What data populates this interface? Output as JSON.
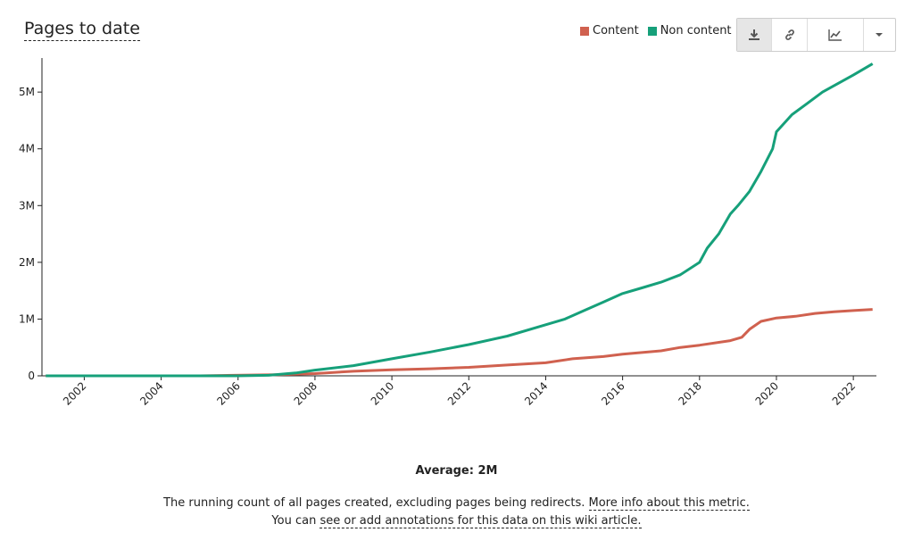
{
  "header": {
    "title": "Pages to date"
  },
  "legend": {
    "items": [
      {
        "label": "Content",
        "color": "#d0614f"
      },
      {
        "label": "Non content",
        "color": "#16a07a"
      }
    ]
  },
  "toolbar": {
    "buttons": [
      {
        "icon": "download-icon",
        "active": true
      },
      {
        "icon": "link-icon",
        "active": false
      },
      {
        "icon": "line-chart-icon",
        "active": false
      },
      {
        "icon": "chevron-down-icon",
        "active": false
      }
    ]
  },
  "chart_data": {
    "type": "line",
    "x_range": [
      2000.9,
      2022.6
    ],
    "ylim": [
      0,
      5600000
    ],
    "y_ticks": [
      0,
      1000000,
      2000000,
      3000000,
      4000000,
      5000000
    ],
    "y_tick_labels": [
      "0",
      "1M",
      "2M",
      "3M",
      "4M",
      "5M"
    ],
    "x_ticks": [
      2002,
      2004,
      2006,
      2008,
      2010,
      2012,
      2014,
      2016,
      2018,
      2020,
      2022
    ],
    "x_tick_labels": [
      "2002",
      "2004",
      "2006",
      "2008",
      "2010",
      "2012",
      "2014",
      "2016",
      "2018",
      "2020",
      "2022"
    ],
    "grid": false,
    "legend_position": "top-right",
    "series": [
      {
        "name": "Content",
        "color": "#d0614f",
        "points": [
          [
            2001.0,
            0
          ],
          [
            2005.0,
            0
          ],
          [
            2005.9,
            10000
          ],
          [
            2007.0,
            20000
          ],
          [
            2008.0,
            40000
          ],
          [
            2009.0,
            80000
          ],
          [
            2010.0,
            105000
          ],
          [
            2011.0,
            125000
          ],
          [
            2012.0,
            150000
          ],
          [
            2013.0,
            190000
          ],
          [
            2014.0,
            230000
          ],
          [
            2014.7,
            300000
          ],
          [
            2015.5,
            340000
          ],
          [
            2016.0,
            380000
          ],
          [
            2017.0,
            440000
          ],
          [
            2017.5,
            500000
          ],
          [
            2018.0,
            540000
          ],
          [
            2018.8,
            620000
          ],
          [
            2019.1,
            680000
          ],
          [
            2019.3,
            820000
          ],
          [
            2019.6,
            960000
          ],
          [
            2020.0,
            1020000
          ],
          [
            2020.5,
            1050000
          ],
          [
            2021.0,
            1100000
          ],
          [
            2021.5,
            1130000
          ],
          [
            2022.0,
            1150000
          ],
          [
            2022.5,
            1170000
          ]
        ]
      },
      {
        "name": "Non content",
        "color": "#16a07a",
        "points": [
          [
            2001.0,
            0
          ],
          [
            2006.0,
            0
          ],
          [
            2006.8,
            10000
          ],
          [
            2007.5,
            50000
          ],
          [
            2008.0,
            100000
          ],
          [
            2009.0,
            180000
          ],
          [
            2010.0,
            300000
          ],
          [
            2011.0,
            420000
          ],
          [
            2012.0,
            550000
          ],
          [
            2013.0,
            700000
          ],
          [
            2014.0,
            900000
          ],
          [
            2014.5,
            1000000
          ],
          [
            2015.0,
            1150000
          ],
          [
            2015.5,
            1300000
          ],
          [
            2016.0,
            1450000
          ],
          [
            2016.5,
            1550000
          ],
          [
            2017.0,
            1650000
          ],
          [
            2017.5,
            1780000
          ],
          [
            2018.0,
            2000000
          ],
          [
            2018.2,
            2250000
          ],
          [
            2018.5,
            2500000
          ],
          [
            2018.8,
            2850000
          ],
          [
            2019.0,
            3000000
          ],
          [
            2019.3,
            3250000
          ],
          [
            2019.6,
            3600000
          ],
          [
            2019.9,
            4000000
          ],
          [
            2020.0,
            4300000
          ],
          [
            2020.4,
            4600000
          ],
          [
            2020.8,
            4800000
          ],
          [
            2021.2,
            5000000
          ],
          [
            2021.6,
            5150000
          ],
          [
            2022.0,
            5300000
          ],
          [
            2022.5,
            5500000
          ]
        ]
      }
    ]
  },
  "footer": {
    "average": "Average: 2M",
    "description": "The running count of all pages created, excluding pages being redirects.",
    "more_info_link": "More info about this metric.",
    "annotations_prefix": "You can",
    "annotations_link": "see or add annotations for this data on this wiki article."
  }
}
